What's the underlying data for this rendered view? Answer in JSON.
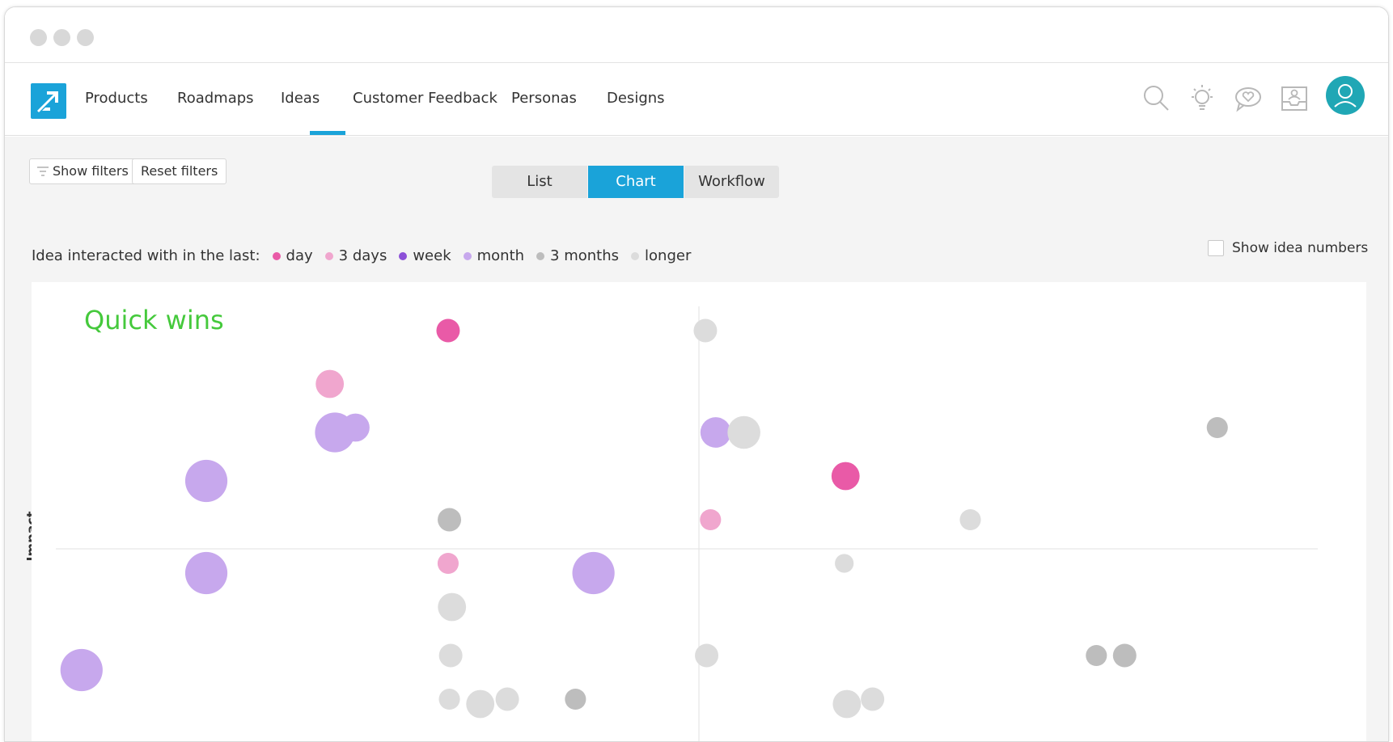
{
  "nav": {
    "items": [
      {
        "label": "Products"
      },
      {
        "label": "Roadmaps"
      },
      {
        "label": "Ideas"
      },
      {
        "label": "Customer Feedback"
      },
      {
        "label": "Personas"
      },
      {
        "label": "Designs"
      }
    ],
    "active": "Ideas",
    "icons": [
      "search-icon",
      "lightbulb-icon",
      "chat-heart-icon",
      "inbox-user-icon"
    ],
    "accent": "#1aa3d9",
    "avatar_color": "#20a7b5"
  },
  "toolbar": {
    "show_filters": "Show filters",
    "reset_filters": "Reset filters",
    "views": [
      "List",
      "Chart",
      "Workflow"
    ],
    "active_view": "Chart"
  },
  "legend": {
    "prefix": "Idea interacted with in the last:",
    "items": [
      {
        "label": "day",
        "color": "#e95aa7"
      },
      {
        "label": "3 days",
        "color": "#f0a6ce"
      },
      {
        "label": "week",
        "color": "#8c50d8"
      },
      {
        "label": "month",
        "color": "#c7a8ed"
      },
      {
        "label": "3 months",
        "color": "#bdbdbd"
      },
      {
        "label": "longer",
        "color": "#dcdcdc"
      }
    ],
    "show_numbers_label": "Show idea numbers",
    "show_numbers_checked": false
  },
  "chart": {
    "quadrant_label": "Quick wins",
    "quadrant_color": "#45c93c",
    "y_axis_label": "Impact"
  },
  "chart_data": {
    "type": "scatter",
    "ylabel": "Impact",
    "xlim": [
      0,
      100
    ],
    "ylim": [
      0,
      100
    ],
    "points": [
      {
        "x": 30.5,
        "y": 95,
        "r": 1,
        "color_group": "day"
      },
      {
        "x": 50.5,
        "y": 95,
        "r": 1,
        "color_group": "longer"
      },
      {
        "x": 21.3,
        "y": 84,
        "r": 1.2,
        "color_group": "3 days"
      },
      {
        "x": 21.7,
        "y": 74,
        "r": 1.7,
        "color_group": "month"
      },
      {
        "x": 23.3,
        "y": 75,
        "r": 1.2,
        "color_group": "month"
      },
      {
        "x": 51.3,
        "y": 74,
        "r": 1.3,
        "color_group": "month"
      },
      {
        "x": 53.5,
        "y": 74,
        "r": 1.4,
        "color_group": "longer"
      },
      {
        "x": 90.3,
        "y": 75,
        "r": 0.9,
        "color_group": "3 months"
      },
      {
        "x": 11.7,
        "y": 64,
        "r": 1.8,
        "color_group": "month"
      },
      {
        "x": 61.4,
        "y": 65,
        "r": 1.2,
        "color_group": "day"
      },
      {
        "x": 30.6,
        "y": 56,
        "r": 1,
        "color_group": "3 months"
      },
      {
        "x": 50.9,
        "y": 56,
        "r": 0.9,
        "color_group": "3 days"
      },
      {
        "x": 71.1,
        "y": 56,
        "r": 0.9,
        "color_group": "longer"
      },
      {
        "x": 11.7,
        "y": 45,
        "r": 1.8,
        "color_group": "month"
      },
      {
        "x": 30.5,
        "y": 47,
        "r": 0.9,
        "color_group": "3 days"
      },
      {
        "x": 41.8,
        "y": 45,
        "r": 1.8,
        "color_group": "month"
      },
      {
        "x": 61.3,
        "y": 47,
        "r": 0.8,
        "color_group": "longer"
      },
      {
        "x": 30.8,
        "y": 38,
        "r": 1.2,
        "color_group": "longer"
      },
      {
        "x": 2,
        "y": 25,
        "r": 1.8,
        "color_group": "month"
      },
      {
        "x": 30.7,
        "y": 28,
        "r": 1,
        "color_group": "longer"
      },
      {
        "x": 50.6,
        "y": 28,
        "r": 1,
        "color_group": "longer"
      },
      {
        "x": 80.9,
        "y": 28,
        "r": 0.9,
        "color_group": "3 months"
      },
      {
        "x": 83.1,
        "y": 28,
        "r": 1,
        "color_group": "3 months"
      },
      {
        "x": 30.6,
        "y": 19,
        "r": 0.9,
        "color_group": "longer"
      },
      {
        "x": 33,
        "y": 18,
        "r": 1.2,
        "color_group": "longer"
      },
      {
        "x": 35.1,
        "y": 19,
        "r": 1,
        "color_group": "longer"
      },
      {
        "x": 40.4,
        "y": 19,
        "r": 0.9,
        "color_group": "3 months"
      },
      {
        "x": 61.5,
        "y": 18,
        "r": 1.2,
        "color_group": "longer"
      },
      {
        "x": 63.5,
        "y": 19,
        "r": 1,
        "color_group": "longer"
      }
    ],
    "x_mid": 50,
    "y_mid": 50,
    "grid": false
  }
}
